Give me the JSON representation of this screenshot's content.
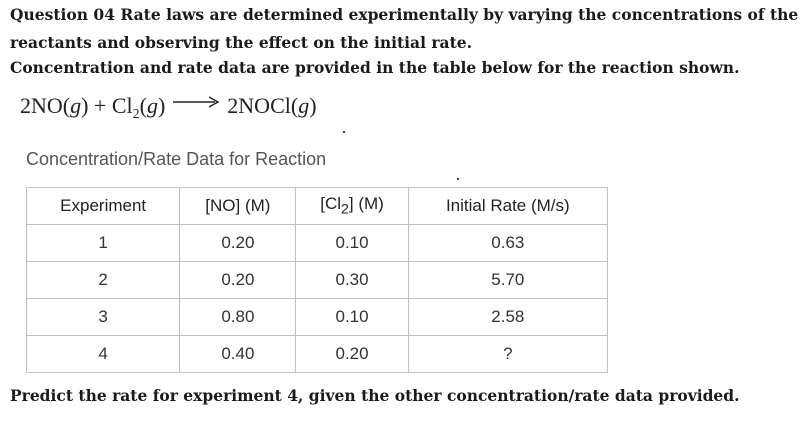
{
  "question": {
    "line1": "Question 04 Rate laws are determined experimentally by varying the concentrations of the",
    "line2": "reactants and observing the effect on the initial rate.",
    "line3": "Concentration and rate data are provided in the table below for the reaction shown."
  },
  "equation": {
    "left_part1": "2NO(",
    "left_g1": "g",
    "left_part2": ") + Cl",
    "left_sub": "2",
    "left_part3": "(",
    "left_g2": "g",
    "left_part4": ")",
    "right_part1": "2NOCl(",
    "right_g": "g",
    "right_part2": ")"
  },
  "table": {
    "caption": "Concentration/Rate Data for Reaction",
    "headers": {
      "experiment": "Experiment",
      "no": "[NO] (M)",
      "cl2_a": "[Cl",
      "cl2_sub": "2",
      "cl2_b": "] (M)",
      "rate": "Initial Rate (M/s)"
    },
    "rows": [
      {
        "experiment": "1",
        "no": "0.20",
        "cl2": "0.10",
        "rate": "0.63"
      },
      {
        "experiment": "2",
        "no": "0.20",
        "cl2": "0.30",
        "rate": "5.70"
      },
      {
        "experiment": "3",
        "no": "0.80",
        "cl2": "0.10",
        "rate": "2.58"
      },
      {
        "experiment": "4",
        "no": "0.40",
        "cl2": "0.20",
        "rate": "?"
      }
    ]
  },
  "footer": "Predict the rate for experiment 4, given the other concentration/rate data provided."
}
